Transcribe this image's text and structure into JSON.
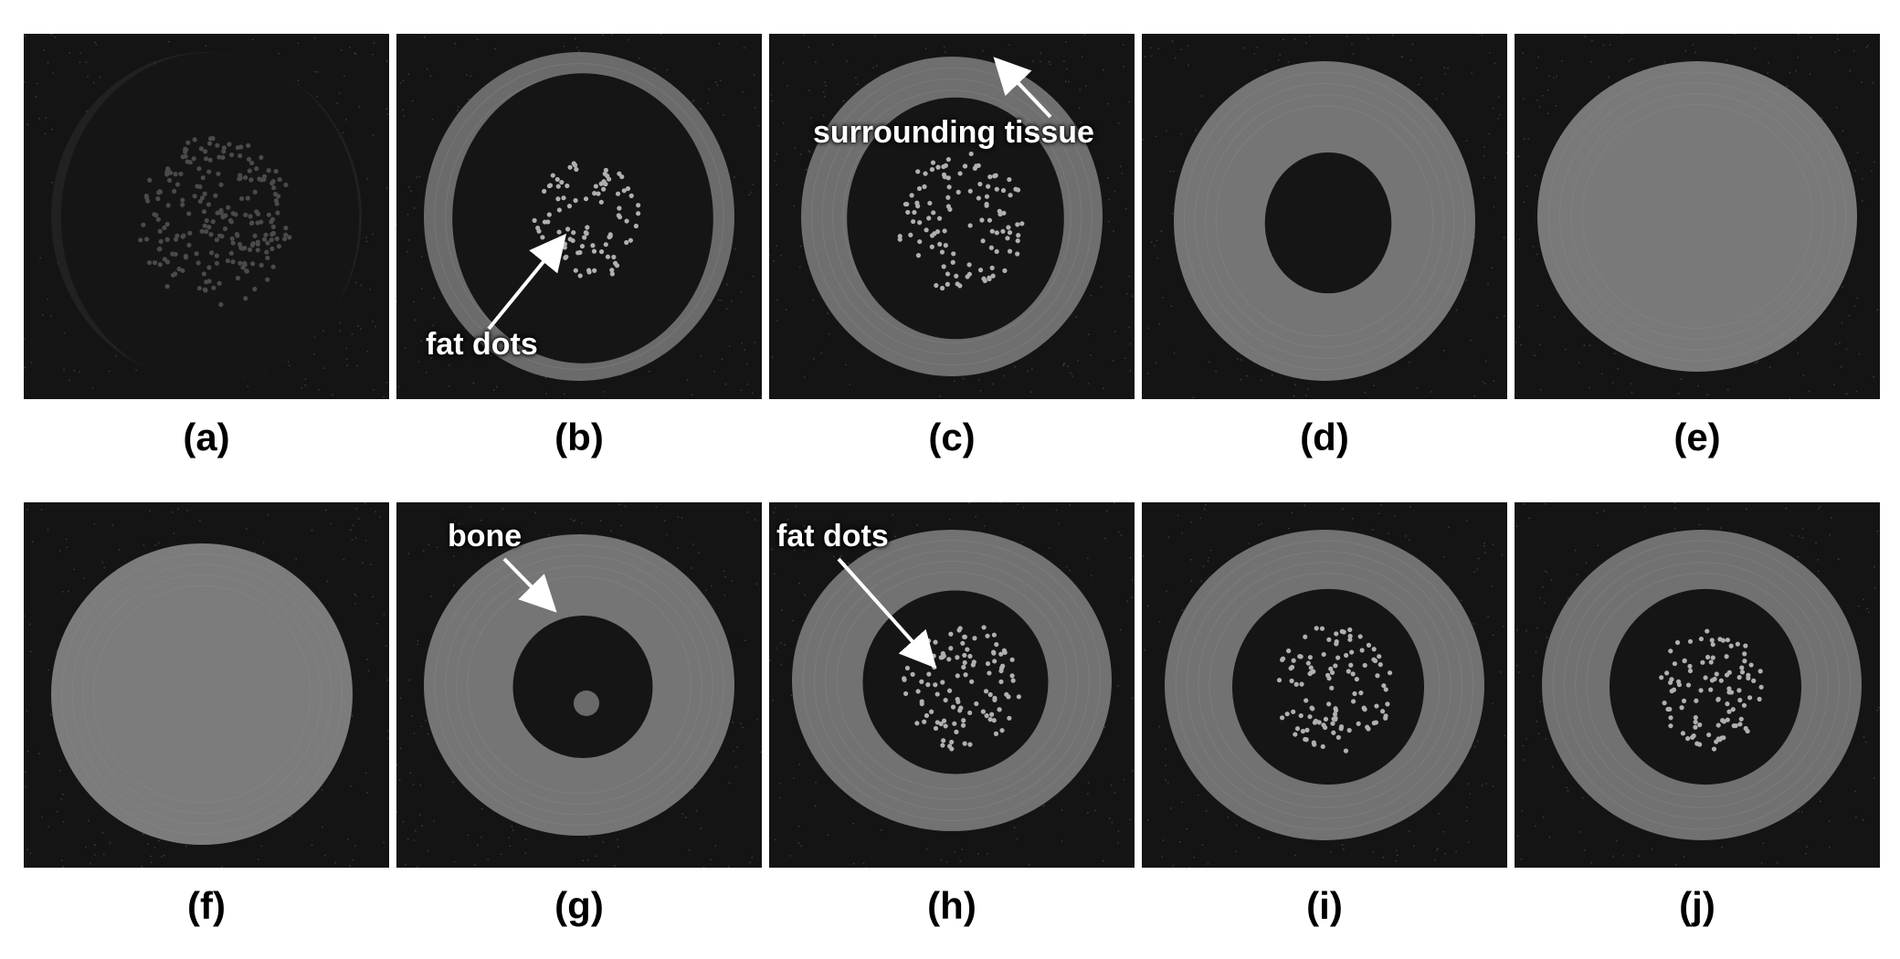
{
  "panels": [
    {
      "id": "a",
      "caption": "(a)",
      "kind": "marrow-faint"
    },
    {
      "id": "b",
      "caption": "(b)",
      "kind": "ring-thin-dots"
    },
    {
      "id": "c",
      "caption": "(c)",
      "kind": "ring-medium-dots"
    },
    {
      "id": "d",
      "caption": "(d)",
      "kind": "ring-thick-empty"
    },
    {
      "id": "e",
      "caption": "(e)",
      "kind": "solid-gray"
    },
    {
      "id": "f",
      "caption": "(f)",
      "kind": "solid-gray"
    },
    {
      "id": "g",
      "caption": "(g)",
      "kind": "ring-small-hole"
    },
    {
      "id": "h",
      "caption": "(h)",
      "kind": "ring-medium-dots"
    },
    {
      "id": "i",
      "caption": "(i)",
      "kind": "ring-medium-dots"
    },
    {
      "id": "j",
      "caption": "(j)",
      "kind": "ring-medium-dots"
    }
  ],
  "annotations": {
    "fat_dots_b": "fat dots",
    "surrounding_tissue_c": "surrounding tissue",
    "bone_g": "bone",
    "fat_dots_h": "fat dots"
  },
  "colors": {
    "background": "#141414",
    "tissue": "#7a7a7a",
    "annotation_text": "#ffffff"
  }
}
